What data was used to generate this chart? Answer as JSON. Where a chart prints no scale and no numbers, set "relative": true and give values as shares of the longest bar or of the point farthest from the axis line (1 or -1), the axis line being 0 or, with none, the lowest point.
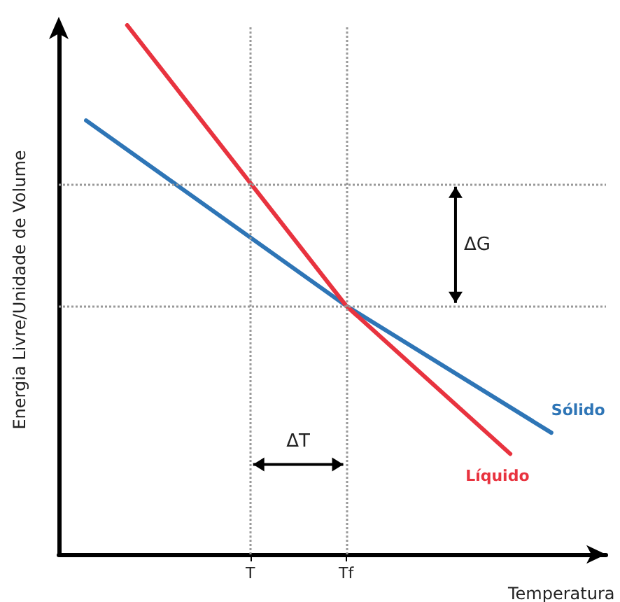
{
  "chart_data": {
    "type": "line",
    "relative": true,
    "xlabel": "Temperatura",
    "ylabel": "Energia Livre/Unidade de Volume",
    "categories": [
      null,
      null,
      null,
      null,
      null,
      null,
      null,
      null,
      null,
      null,
      null,
      null,
      null,
      null,
      "T",
      null,
      null,
      null,
      null,
      null,
      null,
      "Tf",
      null,
      null,
      null,
      null,
      null,
      null,
      null,
      null,
      null,
      null,
      null,
      null,
      null,
      null,
      null,
      null,
      null,
      null,
      null
    ],
    "tick_labels": "x",
    "grid": false,
    "legend": false,
    "marker": "none",
    "line_style": "solid",
    "series": [
      {
        "name": "Sólido",
        "color": "#2e75b6",
        "values": [
          null,
          null,
          0.82,
          null,
          null,
          null,
          null,
          null,
          null,
          null,
          null,
          null,
          null,
          null,
          null,
          null,
          null,
          null,
          null,
          null,
          null,
          0.47,
          null,
          null,
          null,
          null,
          null,
          null,
          null,
          null,
          null,
          null,
          null,
          null,
          null,
          null,
          0.23,
          null,
          null,
          null,
          null
        ]
      },
      {
        "name": "Líquido",
        "color": "#e8333f",
        "values": [
          null,
          null,
          null,
          null,
          null,
          1,
          null,
          null,
          null,
          null,
          null,
          null,
          null,
          null,
          null,
          null,
          null,
          null,
          null,
          null,
          null,
          0.47,
          null,
          null,
          null,
          null,
          null,
          null,
          null,
          null,
          null,
          null,
          null,
          0.19,
          null,
          null,
          null,
          null,
          null,
          null,
          null
        ]
      }
    ],
    "ref_lines": [
      {
        "axis": "x",
        "value": "T",
        "color": "#999999",
        "line_style": "dotted"
      },
      {
        "axis": "x",
        "value": "Tf",
        "color": "#999999",
        "line_style": "dotted"
      },
      {
        "axis": "y",
        "value": 0.7,
        "color": "#999999",
        "line_style": "dotted"
      },
      {
        "axis": "y",
        "value": 0.47,
        "color": "#999999",
        "line_style": "dotted"
      }
    ],
    "annotations": [
      "ΔG",
      "ΔT"
    ]
  }
}
